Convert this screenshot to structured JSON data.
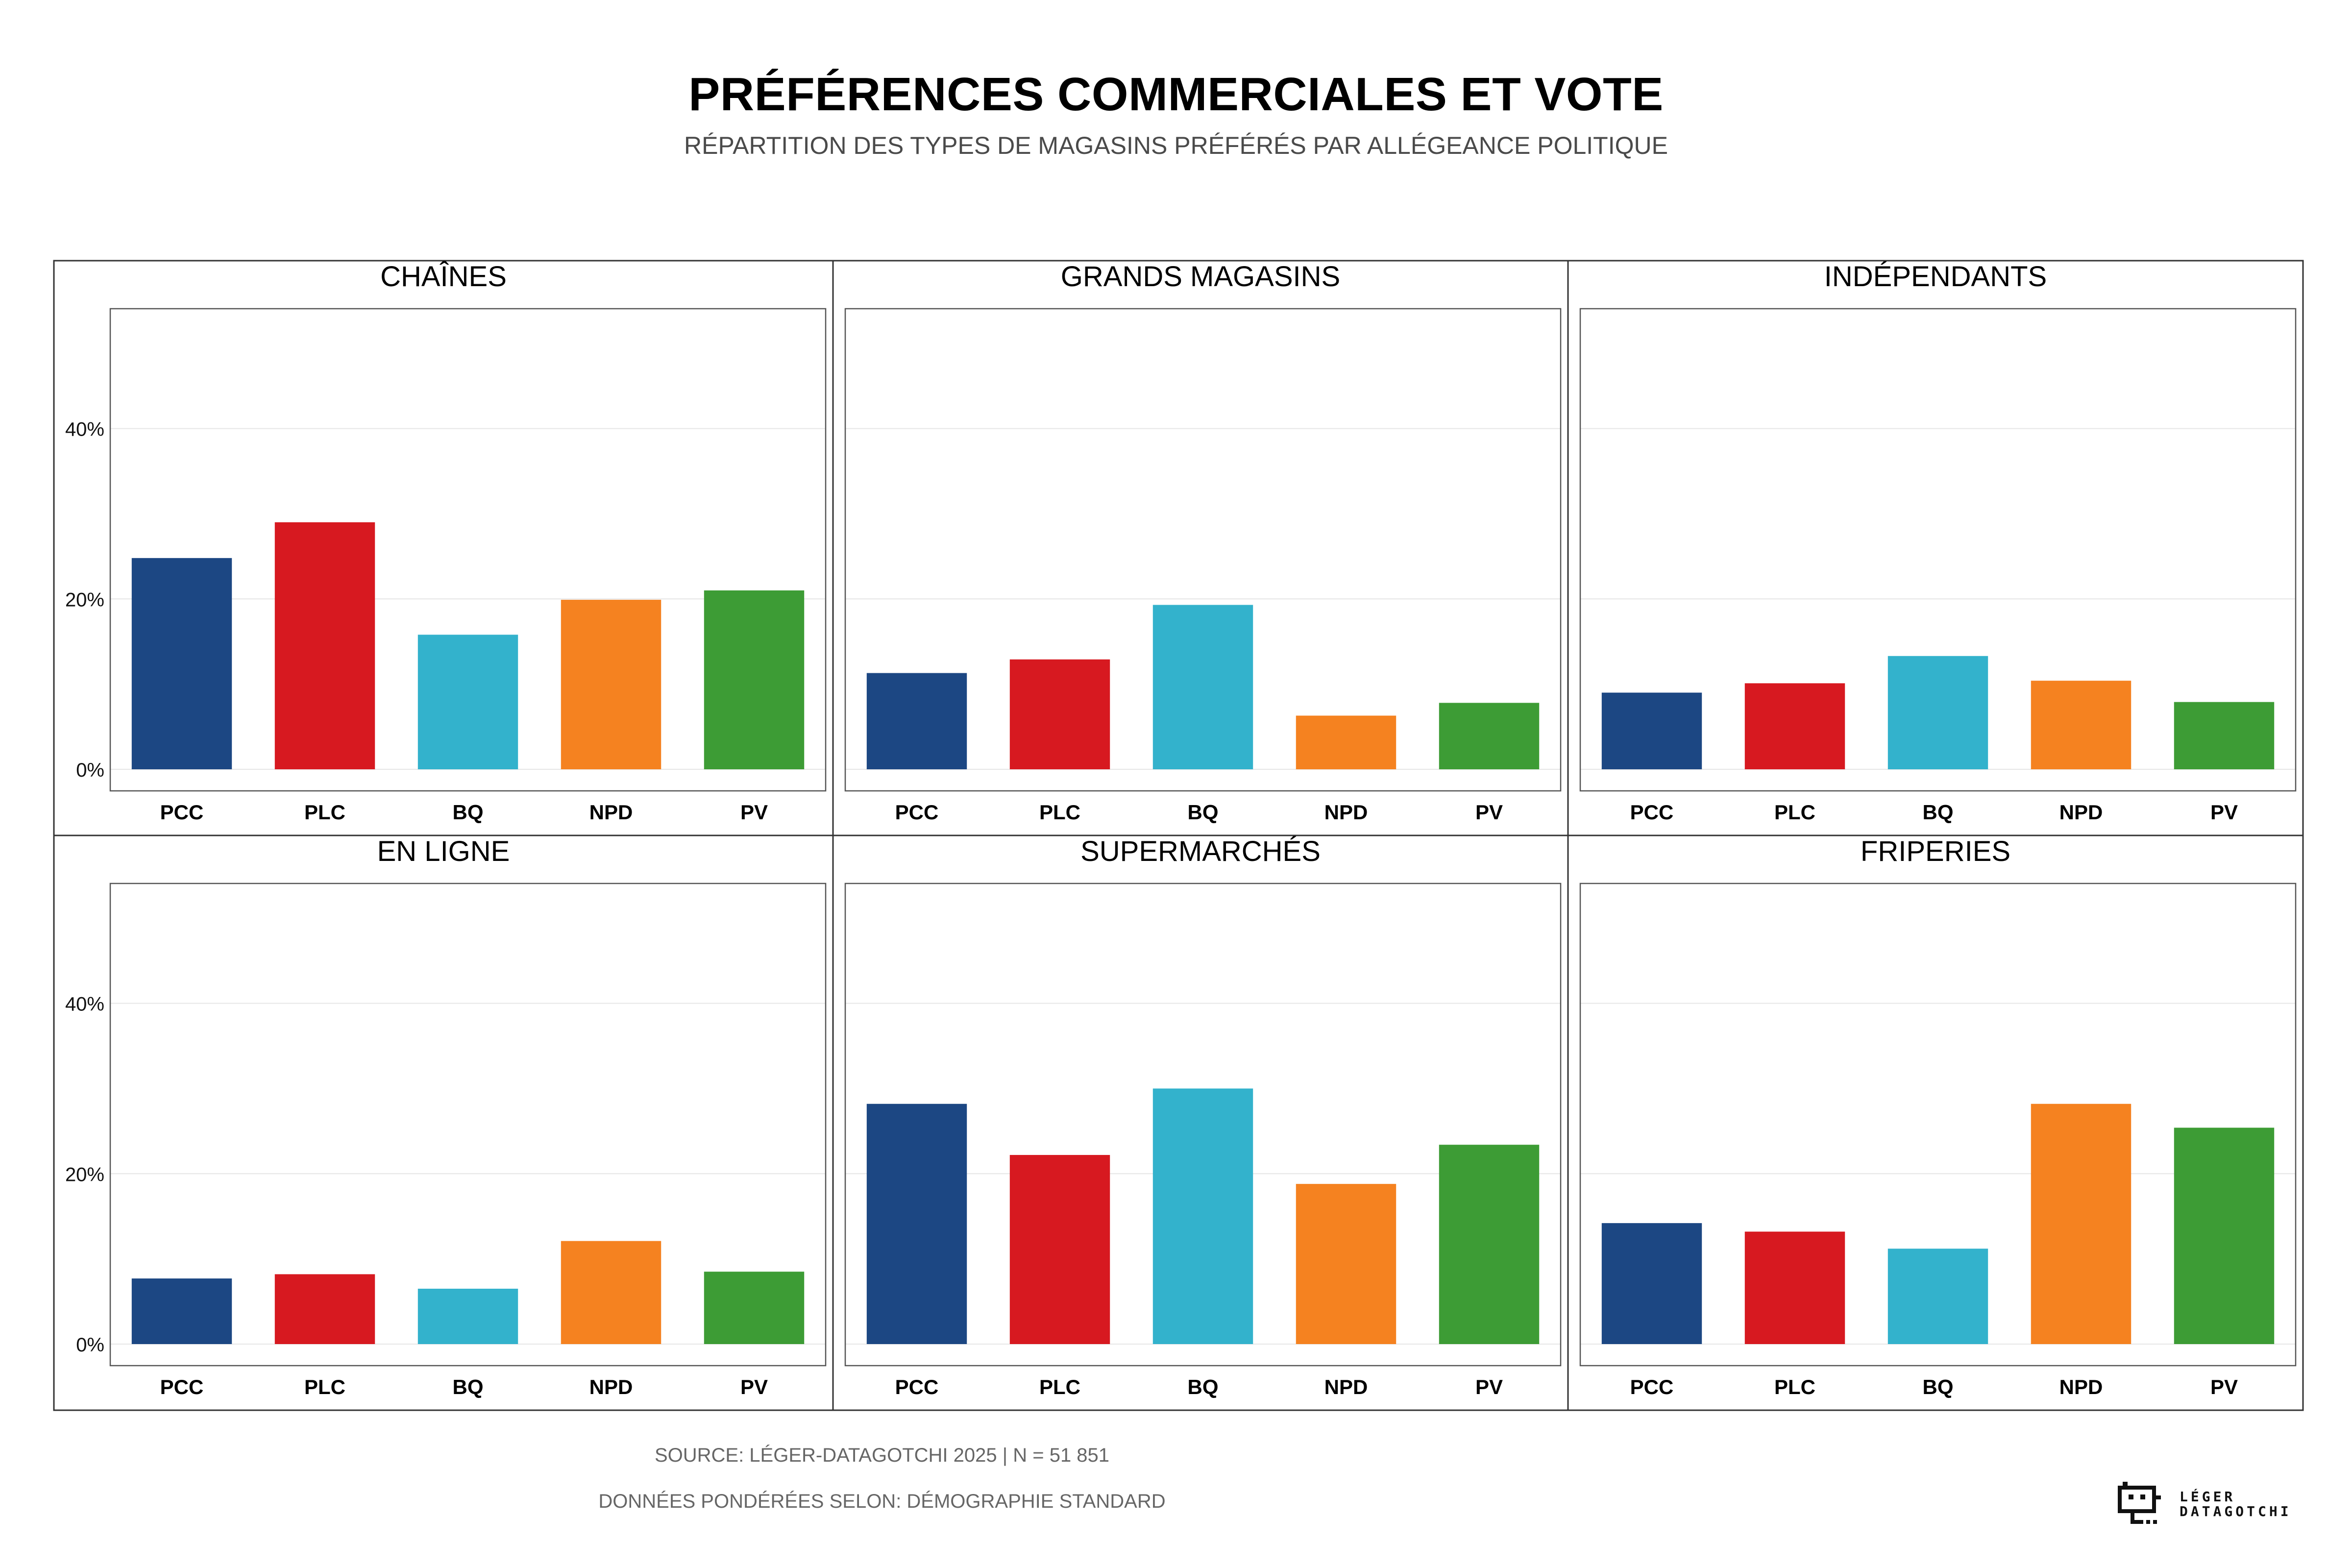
{
  "header": {
    "title": "PRÉFÉRENCES COMMERCIALES ET VOTE",
    "subtitle": "RÉPARTITION DES TYPES DE MAGASINS PRÉFÉRÉS PAR ALLÉGEANCE POLITIQUE"
  },
  "footer": {
    "source": "SOURCE: LÉGER-DATAGOTCHI 2025 | N = 51 851",
    "weights": "DONNÉES PONDÉRÉES SELON: DÉMOGRAPHIE STANDARD"
  },
  "logo": {
    "line1": "LÉGER",
    "line2": "DATAGOTCHI",
    "icon": "datagotchi-robot-icon"
  },
  "colors": {
    "PCC": "#1c4783",
    "PLC": "#d71920",
    "BQ": "#33b2cc",
    "NPD": "#f58220",
    "PV": "#3d9c35"
  },
  "chart_data": [
    {
      "type": "bar",
      "title": "CHAÎNES",
      "categories": [
        "PCC",
        "PLC",
        "BQ",
        "NPD",
        "PV"
      ],
      "values": [
        24.8,
        29.0,
        15.8,
        19.9,
        21.0
      ],
      "ylim": [
        0,
        52
      ],
      "yticks": [
        0,
        20,
        40
      ],
      "ytick_labels": [
        "0%",
        "20%",
        "40%"
      ]
    },
    {
      "type": "bar",
      "title": "GRANDS MAGASINS",
      "categories": [
        "PCC",
        "PLC",
        "BQ",
        "NPD",
        "PV"
      ],
      "values": [
        11.3,
        12.9,
        19.3,
        6.3,
        7.8
      ],
      "ylim": [
        0,
        52
      ],
      "yticks": [
        0,
        20,
        40
      ],
      "ytick_labels": [
        "0%",
        "20%",
        "40%"
      ]
    },
    {
      "type": "bar",
      "title": "INDÉPENDANTS",
      "categories": [
        "PCC",
        "PLC",
        "BQ",
        "NPD",
        "PV"
      ],
      "values": [
        9.0,
        10.1,
        13.3,
        10.4,
        7.9
      ],
      "ylim": [
        0,
        52
      ],
      "yticks": [
        0,
        20,
        40
      ],
      "ytick_labels": [
        "0%",
        "20%",
        "40%"
      ]
    },
    {
      "type": "bar",
      "title": "EN LIGNE",
      "categories": [
        "PCC",
        "PLC",
        "BQ",
        "NPD",
        "PV"
      ],
      "values": [
        7.7,
        8.2,
        6.5,
        12.1,
        8.5
      ],
      "ylim": [
        0,
        52
      ],
      "yticks": [
        0,
        20,
        40
      ],
      "ytick_labels": [
        "0%",
        "20%",
        "40%"
      ]
    },
    {
      "type": "bar",
      "title": "SUPERMARCHÉS",
      "categories": [
        "PCC",
        "PLC",
        "BQ",
        "NPD",
        "PV"
      ],
      "values": [
        28.2,
        22.2,
        30.0,
        18.8,
        23.4
      ],
      "ylim": [
        0,
        52
      ],
      "yticks": [
        0,
        20,
        40
      ],
      "ytick_labels": [
        "0%",
        "20%",
        "40%"
      ]
    },
    {
      "type": "bar",
      "title": "FRIPERIES",
      "categories": [
        "PCC",
        "PLC",
        "BQ",
        "NPD",
        "PV"
      ],
      "values": [
        14.2,
        13.2,
        11.2,
        28.2,
        25.4
      ],
      "ylim": [
        0,
        52
      ],
      "yticks": [
        0,
        20,
        40
      ],
      "ytick_labels": [
        "0%",
        "20%",
        "40%"
      ]
    }
  ]
}
